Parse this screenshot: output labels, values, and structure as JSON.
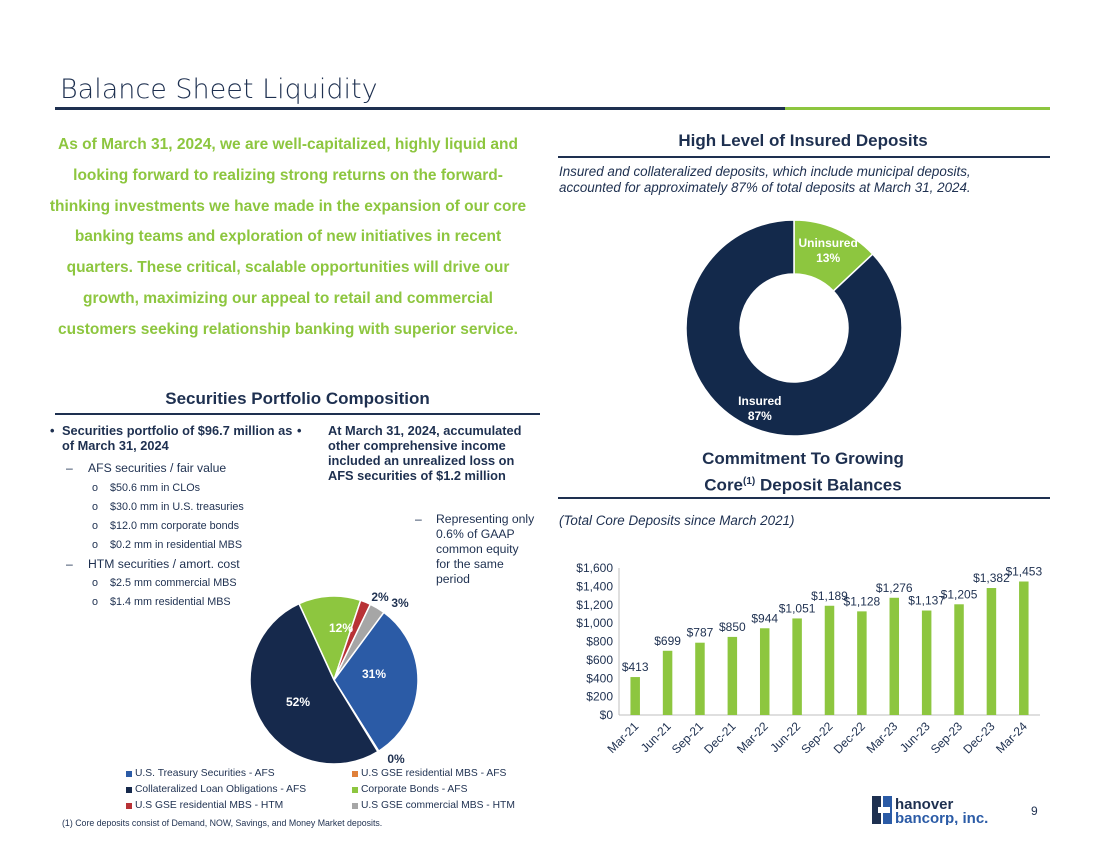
{
  "title": "Balance Sheet Liquidity",
  "intro": "As of March 31, 2024, we are well-capitalized, highly liquid and looking forward to realizing strong returns on the forward-thinking investments we have made in the expansion of our core banking teams and exploration of new initiatives in recent quarters. These critical, scalable opportunities will drive our growth, maximizing our appeal to retail and commercial customers seeking relationship banking with superior service.",
  "securities": {
    "heading": "Securities Portfolio Composition",
    "bullet1": "Securities portfolio of $96.7 million as of March 31, 2024",
    "afs_label": "AFS securities / fair value",
    "afs_items": [
      "$50.6 mm in CLOs",
      "$30.0 mm in U.S. treasuries",
      "$12.0 mm corporate bonds",
      "$0.2 mm in residential MBS"
    ],
    "htm_label": "HTM securities / amort. cost",
    "htm_items": [
      "$2.5 mm commercial MBS",
      "$1.4 mm residential MBS"
    ],
    "bullet2": "At March 31, 2024, accumulated other comprehensive income included an unrealized loss on AFS securities of $1.2 million",
    "bullet2_sub": "Representing only 0.6% of GAAP common equity for the same period"
  },
  "insured": {
    "heading": "High Level of Insured Deposits",
    "description": "Insured and collateralized deposits, which include municipal deposits, accounted for approximately 87% of total deposits at March 31, 2024."
  },
  "core": {
    "heading_line1": "Commitment To Growing",
    "heading_core": "Core",
    "heading_sup": "(1)",
    "heading_rest": " Deposit Balances",
    "description": "(Total Core Deposits since March 2021)"
  },
  "chart_data": [
    {
      "type": "pie",
      "variant": "donut",
      "labels": [
        "Uninsured",
        "Insured"
      ],
      "values": [
        13,
        87
      ],
      "data_labels": [
        "13%",
        "87%"
      ],
      "colors": [
        "#8dc63f",
        "#13294b"
      ]
    },
    {
      "type": "pie",
      "labels": [
        "U.S. Treasury Securities - AFS",
        "U.S GSE residential MBS - AFS",
        "Collateralized Loan Obligations - AFS",
        "Corporate Bonds - AFS",
        "U.S GSE residential MBS - HTM",
        "U.S GSE commercial MBS - HTM"
      ],
      "values": [
        31,
        0.2,
        52,
        12,
        2,
        3
      ],
      "data_labels": [
        "31%",
        "0%",
        "52%",
        "12%",
        "2%",
        "3%"
      ],
      "colors": [
        "#2b5ba6",
        "#e0803a",
        "#16294c",
        "#8dc63f",
        "#b83236",
        "#a6a6a6"
      ],
      "legend_position": "bottom"
    },
    {
      "type": "bar",
      "categories": [
        "Mar-21",
        "Jun-21",
        "Sep-21",
        "Dec-21",
        "Mar-22",
        "Jun-22",
        "Sep-22",
        "Dec-22",
        "Mar-23",
        "Jun-23",
        "Sep-23",
        "Dec-23",
        "Mar-24"
      ],
      "values": [
        413,
        699,
        787,
        850,
        944,
        1051,
        1189,
        1128,
        1276,
        1137,
        1205,
        1382,
        1453
      ],
      "data_labels": [
        "$413",
        "$699",
        "$787",
        "$850",
        "$944",
        "$1,051",
        "$1,189",
        "$1,128",
        "$1,276",
        "$1,137",
        "$1,205",
        "$1,382",
        "$1,453"
      ],
      "y_ticks": [
        "$0",
        "$200",
        "$400",
        "$600",
        "$800",
        "$1,000",
        "$1,200",
        "$1,400",
        "$1,600"
      ],
      "ylim": [
        0,
        1600
      ],
      "color": "#8dc63f",
      "grid": false
    }
  ],
  "footnote": "(1) Core deposits consist of Demand, NOW, Savings, and Money Market deposits.",
  "logo": {
    "line1": "hanover",
    "line2": "bancorp, inc.",
    "colors": [
      "#1e3050",
      "#2b5ba6"
    ]
  },
  "page_number": "9"
}
